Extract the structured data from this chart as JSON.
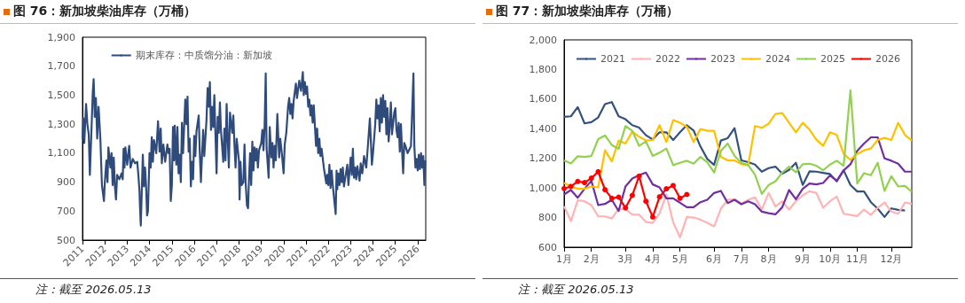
{
  "chart_data": [
    {
      "type": "line",
      "title": "图 76：新加坡柴油库存（万桶）",
      "annotations": [
        "注：截至 2026.05.13"
      ],
      "legend": "top left",
      "grid": false,
      "marker": "none",
      "xlim": [
        2011,
        2026.36
      ],
      "xticks": [
        2011,
        2012,
        2013,
        2014,
        2015,
        2016,
        2017,
        2018,
        2019,
        2020,
        2021,
        2022,
        2023,
        2024,
        2025,
        2026
      ],
      "ylim": [
        500,
        1900
      ],
      "yticks": [
        500,
        700,
        900,
        {
          "value": 1100,
          "label": "1,100"
        },
        {
          "value": 1300,
          "label": "1,300"
        },
        {
          "value": 1500,
          "label": "1,500"
        },
        {
          "value": 1700,
          "label": "1,700"
        },
        {
          "value": 1900,
          "label": "1,900"
        }
      ],
      "x": [
        2011.0,
        2011.04,
        2011.08,
        2011.16,
        2011.22,
        2011.28,
        2011.33,
        2011.4,
        2011.46,
        2011.5,
        2011.55,
        2011.6,
        2011.66,
        2011.72,
        2011.8,
        2011.87,
        2011.96,
        2012.0,
        2012.07,
        2012.12,
        2012.16,
        2012.25,
        2012.3,
        2012.35,
        2012.4,
        2012.45,
        2012.5,
        2012.55,
        2012.65,
        2012.75,
        2012.8,
        2012.84,
        2012.88,
        2012.92,
        2013.0,
        2013.09,
        2013.15,
        2013.25,
        2013.35,
        2013.45,
        2013.5,
        2013.55,
        2013.58,
        2013.61,
        2013.7,
        2013.75,
        2013.8,
        2013.85,
        2013.89,
        2013.93,
        2014.0,
        2014.05,
        2014.1,
        2014.15,
        2014.2,
        2014.3,
        2014.38,
        2014.45,
        2014.5,
        2014.55,
        2014.62,
        2014.7,
        2014.8,
        2014.85,
        2014.9,
        2014.95,
        2015.0,
        2015.05,
        2015.1,
        2015.13,
        2015.2,
        2015.25,
        2015.3,
        2015.35,
        2015.4,
        2015.45,
        2015.5,
        2015.6,
        2015.65,
        2015.7,
        2015.75,
        2015.8,
        2015.85,
        2015.9,
        2015.95,
        2016.0,
        2016.05,
        2016.1,
        2016.2,
        2016.25,
        2016.3,
        2016.35,
        2016.4,
        2016.45,
        2016.55,
        2016.6,
        2016.65,
        2016.7,
        2016.75,
        2016.8,
        2016.85,
        2016.9,
        2016.95,
        2017.0,
        2017.05,
        2017.1,
        2017.15,
        2017.2,
        2017.3,
        2017.35,
        2017.4,
        2017.45,
        2017.5,
        2017.55,
        2017.6,
        2017.7,
        2017.75,
        2017.8,
        2017.85,
        2017.9,
        2018.0,
        2018.03,
        2018.07,
        2018.12,
        2018.2,
        2018.25,
        2018.3,
        2018.36,
        2018.41,
        2018.45,
        2018.5,
        2018.55,
        2018.6,
        2018.65,
        2018.7,
        2018.75,
        2018.8,
        2018.85,
        2018.9,
        2019.0,
        2019.05,
        2019.1,
        2019.15,
        2019.2,
        2019.24,
        2019.33,
        2019.38,
        2019.45,
        2019.5,
        2019.55,
        2019.6,
        2019.65,
        2019.72,
        2019.8,
        2019.85,
        2019.92,
        2020.0,
        2020.05,
        2020.12,
        2020.2,
        2020.25,
        2020.3,
        2020.35,
        2020.4,
        2020.45,
        2020.55,
        2020.6,
        2020.7,
        2020.78,
        2020.86,
        2020.9,
        2020.95,
        2021.0,
        2021.05,
        2021.1,
        2021.15,
        2021.2,
        2021.25,
        2021.3,
        2021.35,
        2021.45,
        2021.5,
        2021.55,
        2021.6,
        2021.65,
        2021.7,
        2021.8,
        2021.91,
        2021.95,
        2022.0,
        2022.05,
        2022.1,
        2022.15,
        2022.2,
        2022.33,
        2022.37,
        2022.4,
        2022.45,
        2022.5,
        2022.55,
        2022.6,
        2022.65,
        2022.7,
        2022.75,
        2022.85,
        2022.9,
        2023.0,
        2023.05,
        2023.1,
        2023.15,
        2023.2,
        2023.25,
        2023.3,
        2023.4,
        2023.45,
        2023.52,
        2023.6,
        2023.7,
        2023.86,
        2023.95,
        2024.0,
        2024.1,
        2024.15,
        2024.2,
        2024.25,
        2024.3,
        2024.35,
        2024.4,
        2024.45,
        2024.5,
        2024.55,
        2024.6,
        2024.65,
        2024.7,
        2024.75,
        2024.8,
        2024.85,
        2024.95,
        2025.0,
        2025.05,
        2025.1,
        2025.15,
        2025.2,
        2025.25,
        2025.3,
        2025.35,
        2025.4,
        2025.45,
        2025.55,
        2025.7,
        2025.81,
        2025.85,
        2025.9,
        2025.95,
        2026.0,
        2026.05,
        2026.1,
        2026.15,
        2026.2,
        2026.25,
        2026.3,
        2026.34
      ],
      "series": [
        {
          "name": "期末库存：中质馏分油：新加坡",
          "color": "#2f4b7c",
          "values": [
            1200,
            1340,
            1170,
            1440,
            1300,
            1230,
            950,
            1250,
            1520,
            1610,
            1350,
            1480,
            1200,
            1420,
            1200,
            880,
            770,
            900,
            1050,
            900,
            1140,
            1000,
            1100,
            880,
            1070,
            870,
            780,
            950,
            920,
            960,
            920,
            1130,
            1000,
            1140,
            1020,
            1150,
            1000,
            1060,
            1030,
            1040,
            950,
            840,
            700,
            600,
            1090,
            870,
            1000,
            860,
            670,
            700,
            1100,
            1000,
            1210,
            1040,
            1190,
            1100,
            1320,
            1110,
            1270,
            1030,
            1160,
            1040,
            1160,
            1100,
            1130,
            770,
            880,
            1280,
            1050,
            1290,
            1020,
            1280,
            960,
            1090,
            900,
            1310,
            1100,
            1470,
            1300,
            1490,
            1110,
            1200,
            870,
            1040,
            920,
            1220,
            1080,
            1250,
            1360,
            1100,
            900,
            1090,
            1260,
            1080,
            1330,
            1550,
            1420,
            1590,
            1260,
            1420,
            1280,
            1500,
            1230,
            960,
            1350,
            1240,
            1450,
            1250,
            1040,
            1270,
            1050,
            1440,
            1200,
            1000,
            1380,
            1240,
            1360,
            1160,
            1000,
            1200,
            1050,
            780,
            1040,
            880,
            900,
            1160,
            900,
            740,
            720,
            920,
            1100,
            880,
            1180,
            980,
            1140,
            1050,
            1130,
            1000,
            1120,
            1170,
            1260,
            1120,
            1290,
            1650,
            1130,
            930,
            1280,
            1070,
            1170,
            1000,
            1150,
            1050,
            1370,
            1070,
            1200,
            1100,
            960,
            1160,
            1240,
            1420,
            1480,
            1370,
            1440,
            1340,
            1460,
            1580,
            1480,
            1600,
            1530,
            1660,
            1500,
            1590,
            1510,
            1560,
            1420,
            1470,
            1360,
            1430,
            1310,
            1430,
            1150,
            1270,
            1100,
            1200,
            1080,
            1130,
            1000,
            890,
            950,
            880,
            1020,
            860,
            980,
            880,
            680,
            980,
            850,
            960,
            880,
            990,
            900,
            1000,
            870,
            920,
            1020,
            880,
            1070,
            950,
            1130,
            930,
            1000,
            920,
            1010,
            910,
            1030,
            960,
            1080,
            1000,
            1340,
            1020,
            1100,
            1300,
            1470,
            1340,
            1430,
            1250,
            1480,
            1310,
            1500,
            1350,
            1460,
            1230,
            1410,
            1180,
            1290,
            1450,
            1230,
            1380,
            1410,
            1260,
            1210,
            1310,
            1110,
            1300,
            1120,
            960,
            1170,
            1150,
            1100,
            1150,
            1650,
            1150,
            1000,
            1060,
            980,
            1090,
            990,
            1100,
            1000,
            1080,
            880,
            1050
          ]
        }
      ]
    },
    {
      "type": "line",
      "title": "图 77：新加坡柴油库存（万桶）",
      "annotations": [
        "注：截至 2026.05.13"
      ],
      "legend": "top",
      "grid": false,
      "categories": [
        "1月",
        null,
        null,
        null,
        "2月",
        null,
        null,
        null,
        null,
        "3月",
        null,
        null,
        null,
        "4月",
        null,
        null,
        null,
        "5月",
        null,
        null,
        null,
        null,
        "6月",
        null,
        null,
        null,
        "7月",
        null,
        null,
        null,
        "8月",
        null,
        null,
        null,
        null,
        "9月",
        null,
        null,
        null,
        "10月",
        null,
        null,
        null,
        "11月",
        null,
        null,
        null,
        null,
        "12月",
        null,
        null,
        null
      ],
      "ylim": [
        600,
        2000
      ],
      "yticks": [
        600,
        800,
        {
          "value": 1000,
          "label": "1,000"
        },
        {
          "value": 1200,
          "label": "1,200"
        },
        {
          "value": 1400,
          "label": "1,400"
        },
        {
          "value": 1600,
          "label": "1,600"
        },
        {
          "value": 1800,
          "label": "1,800"
        },
        {
          "value": 2000,
          "label": "2,000"
        }
      ],
      "series": [
        {
          "name": "2021",
          "color": "#34527e",
          "marker": "none",
          "values": [
            1480,
            1484,
            1546,
            1436,
            1444,
            1476,
            1566,
            1580,
            1484,
            1464,
            1424,
            1408,
            1356,
            1328,
            1376,
            1376,
            1324,
            1376,
            1424,
            1388,
            1280,
            1196,
            1156,
            1320,
            1336,
            1404,
            1186,
            1174,
            1158,
            1110,
            1134,
            1144,
            1096,
            1122,
            1170,
            1020,
            1112,
            1110,
            1102,
            1094,
            1044,
            1120,
            1020,
            976,
            976,
            904,
            860,
            804,
            862,
            852,
            848,
            null
          ]
        },
        {
          "name": "2022",
          "color": "#ffb3b3",
          "marker": "none",
          "values": [
            876,
            776,
            916,
            910,
            884,
            808,
            808,
            794,
            860,
            856,
            820,
            820,
            770,
            764,
            830,
            956,
            768,
            666,
            804,
            800,
            786,
            764,
            740,
            860,
            920,
            924,
            894,
            920,
            936,
            854,
            966,
            874,
            910,
            854,
            910,
            950,
            978,
            966,
            866,
            910,
            942,
            826,
            818,
            810,
            854,
            818,
            866,
            902,
            840,
            826,
            902,
            892
          ]
        },
        {
          "name": "2023",
          "color": "#7030a0",
          "marker": "none",
          "values": [
            956,
            986,
            934,
            994,
            1048,
            884,
            892,
            920,
            844,
            1010,
            1064,
            1086,
            1104,
            1024,
            1004,
            930,
            930,
            900,
            870,
            870,
            904,
            920,
            966,
            980,
            898,
            920,
            890,
            910,
            890,
            840,
            830,
            822,
            870,
            986,
            924,
            994,
            1030,
            1024,
            1034,
            1084,
            1050,
            1118,
            1160,
            1250,
            1300,
            1342,
            1342,
            1200,
            1184,
            1164,
            1110,
            1110
          ]
        },
        {
          "name": "2024",
          "color": "#ffc000",
          "marker": "none",
          "values": [
            1034,
            1010,
            994,
            994,
            1010,
            1004,
            1254,
            1180,
            1320,
            1300,
            1380,
            1346,
            1320,
            1324,
            1424,
            1310,
            1458,
            1440,
            1414,
            1310,
            1398,
            1386,
            1386,
            1210,
            1186,
            1186,
            1160,
            1154,
            1418,
            1406,
            1434,
            1500,
            1506,
            1440,
            1376,
            1440,
            1394,
            1326,
            1284,
            1376,
            1358,
            1230,
            1190,
            1230,
            1254,
            1266,
            1324,
            1338,
            1324,
            1440,
            1358,
            1320
          ]
        },
        {
          "name": "2025",
          "color": "#92d050",
          "marker": "none",
          "values": [
            1186,
            1166,
            1214,
            1210,
            1216,
            1330,
            1354,
            1290,
            1264,
            1418,
            1386,
            1284,
            1314,
            1216,
            1238,
            1266,
            1154,
            1170,
            1184,
            1164,
            1210,
            1174,
            1104,
            1250,
            1300,
            1216,
            1170,
            1154,
            1090,
            960,
            1020,
            1044,
            1104,
            1144,
            1106,
            1160,
            1164,
            1150,
            1120,
            1158,
            1184,
            1150,
            1660,
            1030,
            1100,
            1086,
            1170,
            980,
            1080,
            1010,
            1014,
            974
          ]
        },
        {
          "name": "2026",
          "color": "#ff0000",
          "marker": "circle",
          "values": [
            996,
            1010,
            1044,
            1036,
            1066,
            1110,
            988,
            930,
            938,
            866,
            950,
            1080,
            910,
            804,
            940,
            994,
            1016,
            930,
            956,
            null,
            null,
            null,
            null,
            null,
            null,
            null,
            null,
            null,
            null,
            null,
            null,
            null,
            null,
            null,
            null,
            null,
            null,
            null,
            null,
            null,
            null,
            null,
            null,
            null,
            null,
            null,
            null,
            null,
            null,
            null,
            null,
            null
          ]
        }
      ]
    }
  ]
}
